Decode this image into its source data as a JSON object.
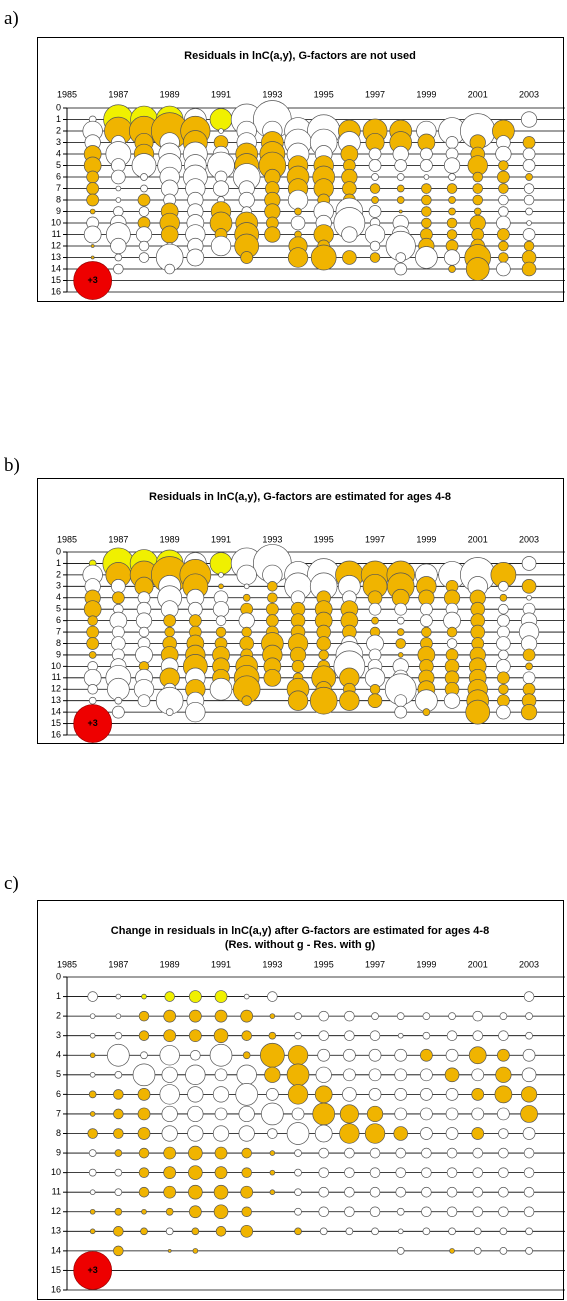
{
  "chart_data": [
    {
      "type": "bubble",
      "label": "a)",
      "title": "Residuals in lnC(a,y), G-factors are not used",
      "x": [
        1986,
        1987,
        1988,
        1989,
        1990,
        1991,
        1992,
        1993,
        1994,
        1995,
        1996,
        1997,
        1998,
        1999,
        2000,
        2001,
        2002,
        2003
      ],
      "y": [
        1,
        2,
        3,
        4,
        5,
        6,
        7,
        8,
        9,
        10,
        11,
        12,
        13,
        14
      ],
      "values": [
        [
          -0.1,
          1.8,
          1.5,
          1.5,
          -1,
          1,
          -2,
          -3,
          0,
          0,
          0,
          0,
          0,
          0,
          0,
          0,
          0,
          -0.5
        ],
        [
          -0.8,
          1.6,
          1.8,
          2.8,
          1.8,
          -0.05,
          -0.8,
          -0.8,
          -1.5,
          -2.2,
          1,
          1.2,
          1,
          -0.8,
          -1.5,
          -2.5,
          1,
          0
        ],
        [
          -0.5,
          -0.4,
          0.7,
          -0.8,
          1.2,
          0.4,
          -0.8,
          1,
          -1.5,
          -1.5,
          -1,
          0.7,
          1,
          0.6,
          -0.3,
          0.5,
          -0.4,
          0.3
        ],
        [
          0.6,
          -1.3,
          0.8,
          -1,
          -1.2,
          -0.5,
          1,
          1.3,
          -1,
          -0.6,
          0.6,
          -0.3,
          -0.5,
          -0.3,
          -0.3,
          0.4,
          -0.5,
          -0.3
        ],
        [
          0.6,
          -0.4,
          -1.2,
          -1.2,
          -1,
          -1.5,
          1.2,
          1.5,
          0.8,
          0.8,
          0.3,
          -0.3,
          -0.3,
          -0.3,
          -0.5,
          0.8,
          0.2,
          -0.3
        ],
        [
          0.3,
          -0.4,
          -0.1,
          -0.8,
          -1.2,
          -0.3,
          -1.5,
          0.5,
          1,
          1,
          0.5,
          -0.1,
          -0.1,
          -0.05,
          -0.1,
          0.2,
          0.3,
          0.1
        ],
        [
          0.3,
          -0.05,
          -0.1,
          -0.6,
          -0.8,
          -0.5,
          -0.5,
          0.4,
          0.8,
          0.8,
          0.4,
          0.2,
          0.1,
          0.2,
          0.2,
          0.2,
          0.2,
          -0.2
        ],
        [
          0.3,
          -0.05,
          0.3,
          -0.3,
          -0.5,
          -0.1,
          -0.5,
          0.5,
          -0.8,
          0.3,
          0.3,
          0.1,
          0.1,
          0.2,
          0.1,
          0.2,
          -0.2,
          -0.2
        ],
        [
          0.05,
          -0.2,
          -0.2,
          0.6,
          -0.5,
          0.8,
          -0.2,
          0.5,
          0.1,
          -0.8,
          -1.5,
          -0.3,
          0.02,
          0.2,
          0.1,
          0.1,
          -0.2,
          -0.1
        ],
        [
          -0.3,
          -0.5,
          0.3,
          0.8,
          -0.6,
          1,
          1,
          0.3,
          -0.4,
          -0.5,
          -2,
          -0.2,
          -0.5,
          0.2,
          0.2,
          0.5,
          -0.4,
          -0.05
        ],
        [
          -0.6,
          -1.2,
          -0.5,
          0.6,
          -0.8,
          0.3,
          1.2,
          0.5,
          0.1,
          0.8,
          -0.5,
          -0.8,
          -0.6,
          0.3,
          0.2,
          0.3,
          0.3,
          -0.3
        ],
        [
          0.02,
          -0.5,
          -0.2,
          -0.1,
          -0.5,
          -0.8,
          1.2,
          0,
          0.7,
          0.3,
          0,
          -0.2,
          -1.8,
          0.5,
          0.3,
          0.4,
          0.2,
          0.2
        ],
        [
          0.02,
          -0.1,
          -0.2,
          -1.5,
          -0.6,
          0,
          0.3,
          0,
          0.8,
          1.3,
          0.4,
          0.2,
          -0.2,
          -1,
          -0.5,
          1.4,
          0.2,
          0.4
        ],
        [
          0,
          -0.2,
          0,
          -0.2,
          0,
          0,
          0,
          0,
          0,
          0,
          0,
          0,
          -0.3,
          0,
          0.1,
          1.1,
          -0.4,
          0.4
        ]
      ],
      "xlim": [
        1985,
        2004.4
      ],
      "xticks": [
        1985,
        1987,
        1989,
        1991,
        1993,
        1995,
        1997,
        1999,
        2001,
        2003
      ],
      "ylim": [
        0,
        16
      ],
      "yticks": [
        0,
        1,
        2,
        3,
        4,
        5,
        6,
        7,
        8,
        9,
        10,
        11,
        12,
        13,
        14,
        15,
        16
      ],
      "positive_color": "#f0b400",
      "negative_color": "#ffffff",
      "first_age_positive_color": "#f0f000",
      "legend_bubble": {
        "value": 3,
        "label": "+3",
        "color": "#ee0000"
      }
    },
    {
      "type": "bubble",
      "label": "b)",
      "title": "Residuals in lnC(a,y), G-factors are estimated for ages 4-8",
      "x": [
        1986,
        1987,
        1988,
        1989,
        1990,
        1991,
        1992,
        1993,
        1994,
        1995,
        1996,
        1997,
        1998,
        1999,
        2000,
        2001,
        2002,
        2003
      ],
      "y": [
        1,
        2,
        3,
        4,
        5,
        6,
        7,
        8,
        9,
        10,
        11,
        12,
        13,
        14
      ],
      "values": [
        [
          0.1,
          2,
          1.6,
          1.5,
          -1,
          1,
          -2,
          -3,
          0,
          0,
          0,
          0,
          0,
          0,
          0,
          0,
          0,
          -0.4
        ],
        [
          -0.8,
          1.3,
          1.6,
          2.8,
          2,
          -0.05,
          -0.8,
          -0.8,
          -1.5,
          -2.2,
          1.6,
          1.6,
          1.6,
          -1,
          -1.5,
          -2.5,
          1.3,
          0
        ],
        [
          -0.5,
          -0.4,
          0.7,
          -1,
          1.3,
          0.05,
          -0.05,
          0.2,
          -1.5,
          -1.5,
          -1,
          1.2,
          1.5,
          0.8,
          0.3,
          -0.8,
          -0.2,
          0.4
        ],
        [
          0.5,
          0.3,
          -0.3,
          -1.2,
          -0.6,
          -0.4,
          0.1,
          0.2,
          -0.4,
          0.4,
          -0.4,
          0.4,
          0.6,
          0.5,
          0.5,
          0.5,
          0.1,
          -0.05
        ],
        [
          0.6,
          -0.2,
          -0.4,
          -0.6,
          -0.4,
          -0.5,
          0.3,
          0.3,
          0.4,
          0.6,
          0.6,
          -0.3,
          -0.3,
          -0.3,
          -0.3,
          0.4,
          -0.2,
          -0.3
        ],
        [
          0.2,
          -0.6,
          -0.5,
          0.3,
          0.3,
          -0.2,
          -0.5,
          0.3,
          0.4,
          0.6,
          0.6,
          0.1,
          -0.1,
          -0.3,
          -0.6,
          0.4,
          -0.3,
          -0.5
        ],
        [
          0.3,
          -0.3,
          -0.2,
          0.2,
          0.3,
          0.2,
          0.2,
          0.3,
          0.4,
          0.4,
          0.4,
          0.2,
          0.1,
          0.2,
          0.2,
          0.4,
          -0.3,
          -0.8
        ],
        [
          0.3,
          -0.4,
          -0.3,
          0.4,
          0.6,
          0.3,
          0.4,
          1,
          0.8,
          0.4,
          -0.5,
          -0.6,
          0.2,
          0.3,
          -0.2,
          0.3,
          -0.4,
          -0.5
        ],
        [
          0.1,
          -0.3,
          -0.6,
          0.6,
          0.8,
          0.6,
          0.3,
          0.8,
          0.5,
          0.2,
          -1.5,
          -0.3,
          0.05,
          0.6,
          0.3,
          0.5,
          -0.2,
          0.3
        ],
        [
          -0.2,
          -0.5,
          0.2,
          -0.6,
          1.2,
          0.6,
          1,
          0.6,
          0.3,
          0.3,
          -2,
          -0.4,
          -0.5,
          0.4,
          0.4,
          0.6,
          -0.4,
          0.1
        ],
        [
          -0.6,
          -1.3,
          -0.6,
          0.8,
          -0.8,
          0.6,
          1.3,
          0.6,
          0.2,
          1.2,
          0.8,
          -0.8,
          -0.5,
          0.5,
          0.4,
          0.6,
          0.3,
          -0.3
        ],
        [
          -0.2,
          -1,
          -0.8,
          -0.3,
          0.8,
          -1,
          1.5,
          0,
          1,
          0.5,
          0.3,
          0.2,
          -2,
          0.6,
          0.4,
          0.8,
          0.2,
          0.3
        ],
        [
          -0.1,
          -0.1,
          -0.3,
          -1.5,
          -0.6,
          0,
          0.2,
          0,
          0.8,
          1.5,
          0.8,
          0.4,
          -0.3,
          -1,
          -0.5,
          1,
          0.3,
          0.4
        ],
        [
          0,
          -0.3,
          0,
          -0.1,
          -0.8,
          0,
          0,
          0,
          0,
          0,
          0,
          0,
          -0.3,
          0.1,
          0,
          1.2,
          -0.4,
          0.5
        ]
      ],
      "xlim": [
        1985,
        2004.4
      ],
      "xticks": [
        1985,
        1987,
        1989,
        1991,
        1993,
        1995,
        1997,
        1999,
        2001,
        2003
      ],
      "ylim": [
        0,
        16
      ],
      "yticks": [
        0,
        1,
        2,
        3,
        4,
        5,
        6,
        7,
        8,
        9,
        10,
        11,
        12,
        13,
        14,
        15,
        16
      ],
      "positive_color": "#f0b400",
      "negative_color": "#ffffff",
      "first_age_positive_color": "#f0f000",
      "legend_bubble": {
        "value": 3,
        "label": "+3",
        "color": "#ee0000"
      }
    },
    {
      "type": "bubble",
      "label": "c)",
      "title": "Change in residuals in lnC(a,y) after G-factors are estimated for ages 4-8 (Res. without g - Res. with g)",
      "x": [
        1986,
        1987,
        1988,
        1989,
        1990,
        1991,
        1992,
        1993,
        1994,
        1995,
        1996,
        1997,
        1998,
        1999,
        2000,
        2001,
        2002,
        2003
      ],
      "y": [
        1,
        2,
        3,
        4,
        5,
        6,
        7,
        8,
        9,
        10,
        11,
        12,
        13,
        14
      ],
      "values": [
        [
          -0.2,
          -0.05,
          0.05,
          0.2,
          0.3,
          0.3,
          -0.05,
          -0.2,
          0,
          0,
          0,
          0,
          0,
          0,
          0,
          0,
          0,
          -0.2
        ],
        [
          -0.05,
          -0.05,
          0.2,
          0.3,
          0.3,
          0.3,
          0.3,
          0.05,
          -0.1,
          -0.2,
          -0.2,
          -0.1,
          -0.1,
          -0.1,
          -0.1,
          -0.2,
          -0.1,
          -0.1
        ],
        [
          -0.05,
          -0.1,
          0.2,
          0.3,
          0.3,
          0.4,
          0.2,
          0.1,
          -0.1,
          -0.2,
          -0.2,
          -0.2,
          -0.05,
          -0.1,
          -0.2,
          -0.2,
          -0.2,
          -0.1
        ],
        [
          0.05,
          -1,
          -0.1,
          -0.8,
          -0.2,
          -1,
          0.1,
          1.2,
          0.8,
          -0.3,
          -0.3,
          -0.3,
          -0.3,
          0.3,
          -0.3,
          0.6,
          0.3,
          -0.3
        ],
        [
          -0.05,
          -0.1,
          -1,
          -0.5,
          -0.8,
          -0.3,
          -0.8,
          0.5,
          1,
          -0.5,
          -0.3,
          -0.3,
          -0.3,
          -0.3,
          0.4,
          -0.3,
          0.5,
          -0.4
        ],
        [
          0.1,
          0.2,
          0.3,
          -0.8,
          -0.5,
          -0.5,
          -1,
          -0.3,
          0.8,
          0.6,
          -0.4,
          -0.3,
          -0.3,
          -0.3,
          -0.3,
          0.3,
          0.6,
          0.5
        ],
        [
          0.05,
          0.2,
          0.3,
          -0.5,
          -0.5,
          -0.3,
          -0.5,
          -1,
          -0.3,
          1,
          0.7,
          0.5,
          -0.3,
          -0.3,
          -0.3,
          -0.3,
          -0.3,
          0.6
        ],
        [
          0.2,
          0.2,
          0.3,
          -0.5,
          -0.5,
          -0.5,
          -0.5,
          -0.2,
          -1,
          -0.6,
          0.8,
          0.8,
          0.4,
          -0.3,
          -0.3,
          0.3,
          -0.2,
          -0.3
        ],
        [
          -0.1,
          0.1,
          0.2,
          0.3,
          0.4,
          0.3,
          0.2,
          0.05,
          -0.1,
          -0.2,
          -0.2,
          -0.2,
          -0.2,
          -0.2,
          -0.2,
          -0.2,
          -0.2,
          -0.2
        ],
        [
          -0.1,
          -0.1,
          0.2,
          0.3,
          0.4,
          0.3,
          0.2,
          0.05,
          -0.1,
          -0.2,
          -0.2,
          -0.2,
          -0.2,
          -0.2,
          -0.2,
          -0.2,
          -0.2,
          -0.2
        ],
        [
          -0.05,
          -0.1,
          0.2,
          0.3,
          0.4,
          0.4,
          0.3,
          0.05,
          -0.1,
          -0.2,
          -0.2,
          -0.2,
          -0.2,
          -0.2,
          -0.2,
          -0.2,
          -0.2,
          -0.2
        ],
        [
          0.05,
          0.1,
          0.05,
          0.1,
          0.3,
          0.4,
          0.2,
          0,
          -0.1,
          -0.2,
          -0.2,
          -0.2,
          -0.1,
          -0.2,
          -0.2,
          -0.2,
          -0.2,
          -0.2
        ],
        [
          0.05,
          0.2,
          0.1,
          -0.1,
          0.1,
          0.2,
          0.3,
          0,
          0.1,
          -0.1,
          -0.1,
          -0.1,
          -0.05,
          -0.1,
          -0.1,
          -0.1,
          -0.1,
          -0.1
        ],
        [
          0,
          0.2,
          0,
          0.02,
          0.05,
          0,
          0,
          0,
          0,
          0,
          0,
          0,
          -0.1,
          0,
          0.05,
          -0.1,
          -0.1,
          -0.1
        ]
      ],
      "xlim": [
        1985,
        2004.4
      ],
      "xticks": [
        1985,
        1987,
        1989,
        1991,
        1993,
        1995,
        1997,
        1999,
        2001,
        2003
      ],
      "ylim": [
        0,
        16
      ],
      "yticks": [
        0,
        1,
        2,
        3,
        4,
        5,
        6,
        7,
        8,
        9,
        10,
        11,
        12,
        13,
        14,
        15,
        16
      ],
      "positive_color": "#f0b400",
      "negative_color": "#ffffff",
      "first_age_positive_color": "#f0f000",
      "legend_bubble": {
        "value": 3,
        "label": "+3",
        "color": "#ee0000"
      }
    }
  ]
}
